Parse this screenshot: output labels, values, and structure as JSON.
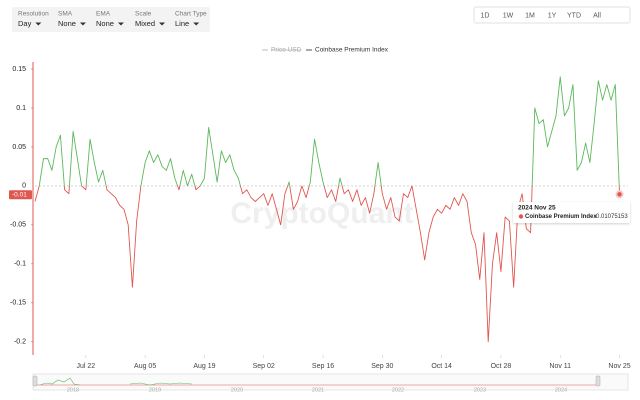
{
  "chart_data": {
    "type": "line",
    "controls": [
      {
        "label": "Resolution",
        "value": "Day"
      },
      {
        "label": "SMA",
        "value": "None"
      },
      {
        "label": "EMA",
        "value": "None"
      },
      {
        "label": "Scale",
        "value": "Mixed"
      },
      {
        "label": "Chart Type",
        "value": "Line"
      }
    ],
    "ranges": [
      "1D",
      "1W",
      "1M",
      "1Y",
      "YTD",
      "All"
    ],
    "hidden_series": [
      "Price USD"
    ],
    "watermark": "CryptoQuant",
    "x": [
      "2024-07-10",
      "2024-07-11",
      "2024-07-12",
      "2024-07-13",
      "2024-07-14",
      "2024-07-15",
      "2024-07-16",
      "2024-07-17",
      "2024-07-18",
      "2024-07-19",
      "2024-07-20",
      "2024-07-21",
      "2024-07-22",
      "2024-07-23",
      "2024-07-24",
      "2024-07-25",
      "2024-07-26",
      "2024-07-27",
      "2024-07-28",
      "2024-07-29",
      "2024-07-30",
      "2024-07-31",
      "2024-08-01",
      "2024-08-02",
      "2024-08-03",
      "2024-08-04",
      "2024-08-05",
      "2024-08-06",
      "2024-08-07",
      "2024-08-08",
      "2024-08-09",
      "2024-08-10",
      "2024-08-11",
      "2024-08-12",
      "2024-08-13",
      "2024-08-14",
      "2024-08-15",
      "2024-08-16",
      "2024-08-17",
      "2024-08-18",
      "2024-08-19",
      "2024-08-20",
      "2024-08-21",
      "2024-08-22",
      "2024-08-23",
      "2024-08-24",
      "2024-08-25",
      "2024-08-26",
      "2024-08-27",
      "2024-08-28",
      "2024-08-29",
      "2024-08-30",
      "2024-08-31",
      "2024-09-01",
      "2024-09-02",
      "2024-09-03",
      "2024-09-04",
      "2024-09-05",
      "2024-09-06",
      "2024-09-07",
      "2024-09-08",
      "2024-09-09",
      "2024-09-10",
      "2024-09-11",
      "2024-09-12",
      "2024-09-13",
      "2024-09-14",
      "2024-09-15",
      "2024-09-16",
      "2024-09-17",
      "2024-09-18",
      "2024-09-19",
      "2024-09-20",
      "2024-09-21",
      "2024-09-22",
      "2024-09-23",
      "2024-09-24",
      "2024-09-25",
      "2024-09-26",
      "2024-09-27",
      "2024-09-28",
      "2024-09-29",
      "2024-09-30",
      "2024-10-01",
      "2024-10-02",
      "2024-10-03",
      "2024-10-04",
      "2024-10-05",
      "2024-10-06",
      "2024-10-07",
      "2024-10-08",
      "2024-10-09",
      "2024-10-10",
      "2024-10-11",
      "2024-10-12",
      "2024-10-13",
      "2024-10-14",
      "2024-10-15",
      "2024-10-16",
      "2024-10-17",
      "2024-10-18",
      "2024-10-19",
      "2024-10-20",
      "2024-10-21",
      "2024-10-22",
      "2024-10-23",
      "2024-10-24",
      "2024-10-25",
      "2024-10-26",
      "2024-10-27",
      "2024-10-28",
      "2024-10-29",
      "2024-10-30",
      "2024-10-31",
      "2024-11-01",
      "2024-11-02",
      "2024-11-03",
      "2024-11-04",
      "2024-11-05",
      "2024-11-06",
      "2024-11-07",
      "2024-11-08",
      "2024-11-09",
      "2024-11-10",
      "2024-11-11",
      "2024-11-12",
      "2024-11-13",
      "2024-11-14",
      "2024-11-15",
      "2024-11-16",
      "2024-11-17",
      "2024-11-18",
      "2024-11-19",
      "2024-11-20",
      "2024-11-21",
      "2024-11-22",
      "2024-11-23",
      "2024-11-24",
      "2024-11-25"
    ],
    "series": [
      {
        "name": "Coinbase Premium Index",
        "color": "#5cb85c",
        "negative_color": "#e0574f",
        "values": [
          -0.02,
          0.0,
          0.035,
          0.035,
          0.02,
          0.05,
          0.065,
          -0.005,
          -0.01,
          0.07,
          0.035,
          0.0,
          -0.005,
          0.06,
          0.03,
          0.005,
          0.02,
          -0.005,
          -0.01,
          -0.015,
          -0.025,
          -0.03,
          -0.05,
          -0.13,
          -0.045,
          0.0,
          0.03,
          0.045,
          0.03,
          0.04,
          0.025,
          0.02,
          0.035,
          0.01,
          -0.005,
          0.02,
          0.0,
          0.015,
          -0.005,
          0.0,
          0.01,
          0.075,
          0.04,
          0.005,
          0.045,
          0.03,
          0.04,
          0.02,
          0.01,
          -0.01,
          -0.005,
          -0.015,
          -0.02,
          -0.015,
          -0.01,
          -0.025,
          -0.01,
          -0.03,
          -0.05,
          -0.01,
          0.005,
          -0.03,
          -0.02,
          0.0,
          -0.015,
          0.005,
          0.06,
          0.03,
          0.005,
          -0.015,
          -0.005,
          -0.02,
          0.01,
          -0.01,
          -0.005,
          -0.02,
          -0.005,
          -0.025,
          -0.015,
          -0.035,
          -0.01,
          0.03,
          -0.01,
          -0.03,
          -0.015,
          -0.04,
          -0.045,
          -0.01,
          -0.015,
          0.0,
          -0.03,
          -0.06,
          -0.095,
          -0.06,
          -0.04,
          -0.03,
          -0.035,
          -0.025,
          -0.03,
          -0.015,
          -0.025,
          -0.01,
          -0.02,
          -0.06,
          -0.075,
          -0.12,
          -0.06,
          -0.2,
          -0.1,
          -0.06,
          -0.11,
          -0.04,
          -0.045,
          -0.13,
          -0.03,
          -0.01,
          -0.055,
          -0.06,
          0.1,
          0.08,
          0.085,
          0.05,
          0.07,
          0.09,
          0.14,
          0.09,
          0.1,
          0.13,
          0.02,
          0.03,
          0.055,
          0.03,
          0.08,
          0.135,
          0.11,
          0.13,
          0.11,
          0.13,
          -0.01075153
        ]
      }
    ],
    "current_value_label": "-0.01",
    "tooltip": {
      "date": "2024 Nov 25",
      "series": "Coinbase Premium Index"
    },
    "xlim": [
      "2024-07-10",
      "2024-11-27"
    ],
    "xticks": [
      {
        "value": "2024-07-22",
        "label": "Jul 22"
      },
      {
        "value": "2024-08-05",
        "label": "Aug 05"
      },
      {
        "value": "2024-08-19",
        "label": "Aug 19"
      },
      {
        "value": "2024-09-02",
        "label": "Sep 02"
      },
      {
        "value": "2024-09-16",
        "label": "Sep 16"
      },
      {
        "value": "2024-09-30",
        "label": "Sep 30"
      },
      {
        "value": "2024-10-14",
        "label": "Oct 14"
      },
      {
        "value": "2024-10-28",
        "label": "Oct 28"
      },
      {
        "value": "2024-11-11",
        "label": "Nov 11"
      },
      {
        "value": "2024-11-25",
        "label": "Nov 25"
      }
    ],
    "ylim": [
      -0.217,
      0.159
    ],
    "yticks": [
      0.15,
      0.1,
      0.05,
      0,
      -0.05,
      -0.1,
      -0.15,
      -0.2
    ],
    "navigator_years": [
      2018,
      2019,
      2020,
      2021,
      2022,
      2023,
      2024
    ]
  }
}
